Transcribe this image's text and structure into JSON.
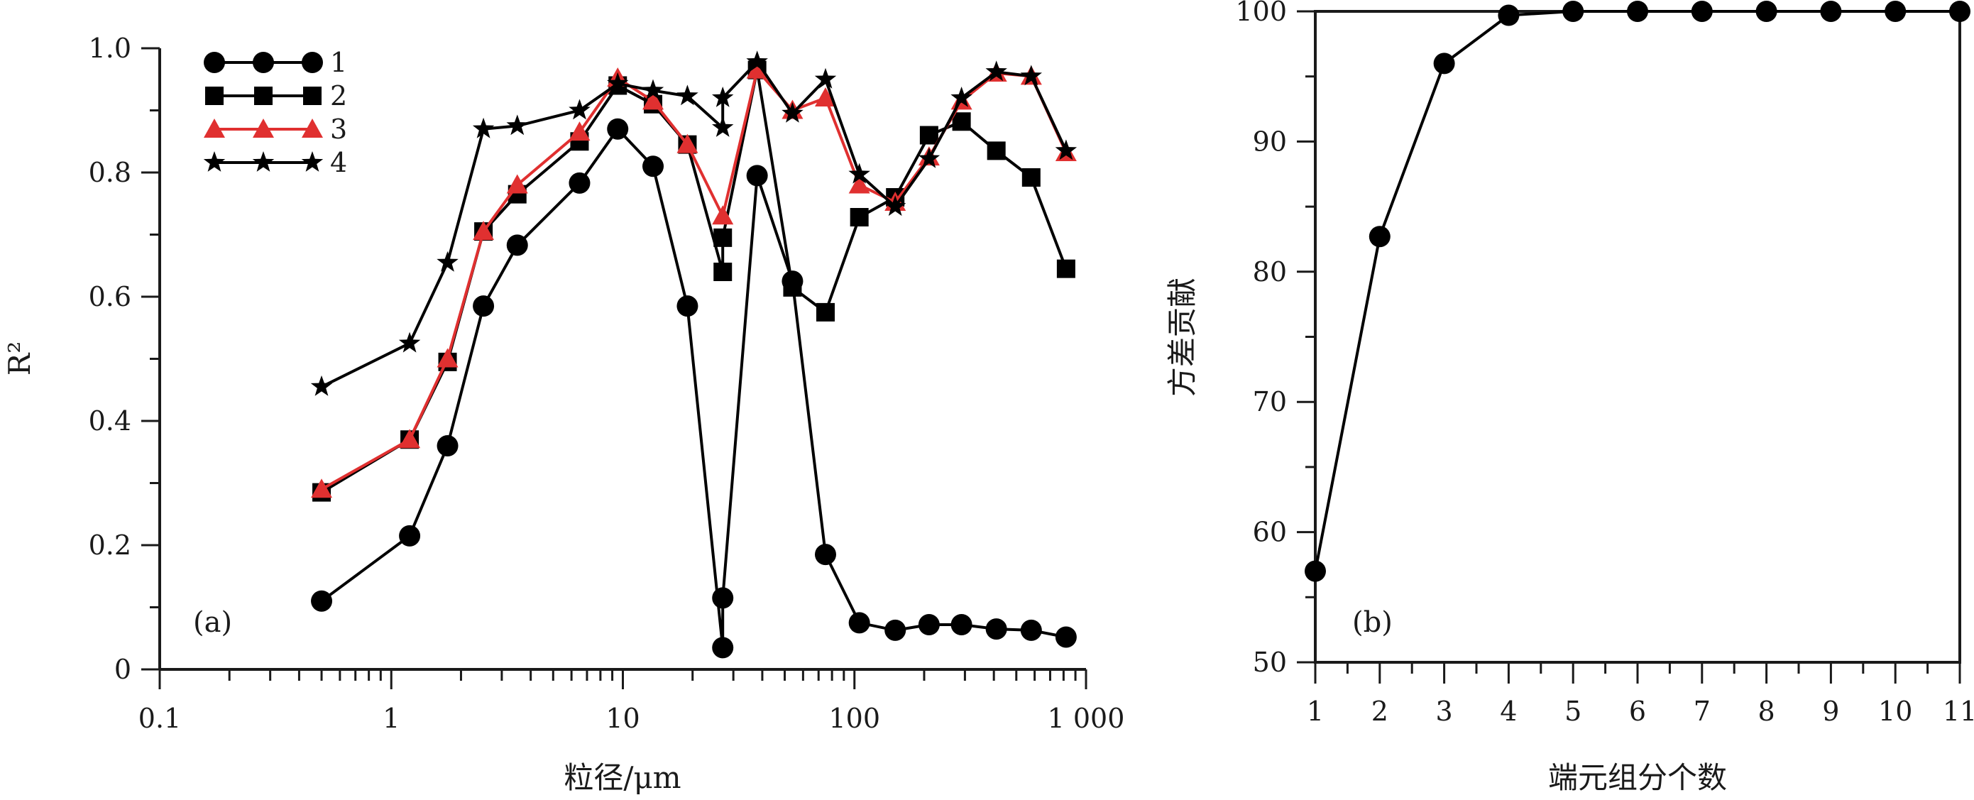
{
  "chart_data": [
    {
      "type": "line",
      "panel_label": "(a)",
      "xlabel": "粒径/μm",
      "ylabel": "R²",
      "xscale": "log",
      "xlim": [
        0.1,
        1000
      ],
      "ylim": [
        0,
        1.0
      ],
      "x_tick_labels": [
        "0.1",
        "1",
        "10",
        "100",
        "1 000"
      ],
      "y_tick_labels": [
        "0",
        "0.2",
        "0.4",
        "0.6",
        "0.8",
        "1.0"
      ],
      "legend_position": "top-left",
      "grid": false,
      "series": [
        {
          "name": "1",
          "marker": "circle",
          "color": "#000000",
          "x": [
            0.5,
            1.2,
            1.75,
            2.5,
            3.5,
            6.5,
            9.5,
            13.5,
            19,
            27,
            27,
            38,
            54,
            75,
            105,
            150,
            210,
            290,
            410,
            580,
            820
          ],
          "y": [
            0.11,
            0.215,
            0.36,
            0.585,
            0.683,
            0.783,
            0.87,
            0.81,
            0.585,
            0.035,
            0.115,
            0.795,
            0.625,
            0.185,
            0.075,
            0.063,
            0.072,
            0.072,
            0.065,
            0.063,
            0.052
          ]
        },
        {
          "name": "2",
          "marker": "square",
          "color": "#000000",
          "x": [
            0.5,
            1.2,
            1.75,
            2.5,
            3.5,
            6.5,
            9.5,
            13.5,
            19,
            27,
            27,
            38,
            54,
            75,
            105,
            150,
            210,
            290,
            410,
            580,
            820
          ],
          "y": [
            0.285,
            0.37,
            0.495,
            0.705,
            0.765,
            0.85,
            0.94,
            0.91,
            0.845,
            0.64,
            0.695,
            0.965,
            0.615,
            0.575,
            0.728,
            0.76,
            0.86,
            0.882,
            0.835,
            0.792,
            0.645
          ]
        },
        {
          "name": "3",
          "marker": "triangle",
          "color": "#e03030",
          "x": [
            0.5,
            1.2,
            1.75,
            2.5,
            3.5,
            6.5,
            9.5,
            13.5,
            19,
            27,
            38,
            54,
            75,
            105,
            150,
            210,
            290,
            410,
            580,
            820
          ],
          "y": [
            0.29,
            0.37,
            0.5,
            0.705,
            0.78,
            0.865,
            0.952,
            0.915,
            0.845,
            0.73,
            0.965,
            0.9,
            0.92,
            0.78,
            0.752,
            0.825,
            0.915,
            0.96,
            0.955,
            0.832
          ]
        },
        {
          "name": "4",
          "marker": "star",
          "color": "#000000",
          "x": [
            0.5,
            1.2,
            1.75,
            2.5,
            3.5,
            6.5,
            9.5,
            13.5,
            19,
            27,
            27,
            38,
            54,
            75,
            105,
            150,
            210,
            290,
            410,
            580,
            820
          ],
          "y": [
            0.455,
            0.525,
            0.655,
            0.87,
            0.875,
            0.9,
            0.943,
            0.932,
            0.923,
            0.872,
            0.92,
            0.978,
            0.895,
            0.95,
            0.797,
            0.745,
            0.822,
            0.92,
            0.962,
            0.955,
            0.835
          ]
        }
      ]
    },
    {
      "type": "line",
      "panel_label": "(b)",
      "xlabel": "端元组分个数",
      "ylabel": "方差贡献",
      "xlim": [
        1,
        11
      ],
      "ylim": [
        50,
        100
      ],
      "x_tick_labels": [
        "1",
        "2",
        "3",
        "4",
        "5",
        "6",
        "7",
        "8",
        "9",
        "10",
        "11"
      ],
      "y_tick_labels": [
        "50",
        "60",
        "70",
        "80",
        "90",
        "100"
      ],
      "grid": false,
      "series": [
        {
          "marker": "circle",
          "color": "#000000",
          "x": [
            1,
            2,
            3,
            4,
            5,
            6,
            7,
            8,
            9,
            10,
            11
          ],
          "y": [
            57,
            82.7,
            96,
            99.7,
            100,
            100,
            100,
            100,
            100,
            100,
            100
          ]
        }
      ]
    }
  ]
}
